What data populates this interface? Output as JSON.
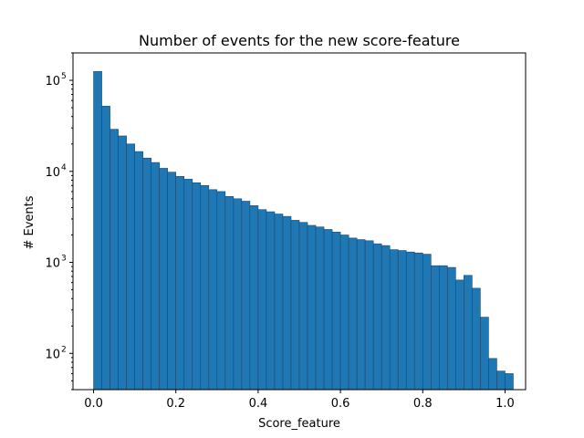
{
  "chart_data": {
    "type": "bar",
    "title": "Number of events for the new score-feature",
    "xlabel": "Score_feature",
    "ylabel": "# Events",
    "x_scale": "linear",
    "y_scale": "log",
    "xlim": [
      -0.05,
      1.05
    ],
    "ylim": [
      40,
      200000
    ],
    "x_ticks": [
      0.0,
      0.2,
      0.4,
      0.6,
      0.8,
      1.0
    ],
    "x_tick_labels": [
      "0.0",
      "0.2",
      "0.4",
      "0.6",
      "0.8",
      "1.0"
    ],
    "y_ticks": [
      100,
      1000,
      10000,
      100000
    ],
    "y_tick_labels": [
      "10",
      "10",
      "10",
      "10"
    ],
    "y_tick_exponents": [
      "2",
      "3",
      "4",
      "5"
    ],
    "grid": false,
    "bar_color": "#1f77b4",
    "bin_edges_start": 0.0,
    "bin_width": 0.02,
    "values": [
      125000,
      52000,
      29000,
      24500,
      20000,
      16500,
      14000,
      12500,
      10800,
      9800,
      8800,
      8200,
      7500,
      7000,
      6300,
      6000,
      5300,
      5000,
      4700,
      4200,
      3800,
      3600,
      3400,
      3200,
      2900,
      2750,
      2550,
      2450,
      2300,
      2150,
      2000,
      1850,
      1780,
      1730,
      1600,
      1530,
      1380,
      1350,
      1300,
      1270,
      1230,
      920,
      920,
      880,
      640,
      720,
      520,
      250,
      88,
      64,
      60
    ]
  }
}
